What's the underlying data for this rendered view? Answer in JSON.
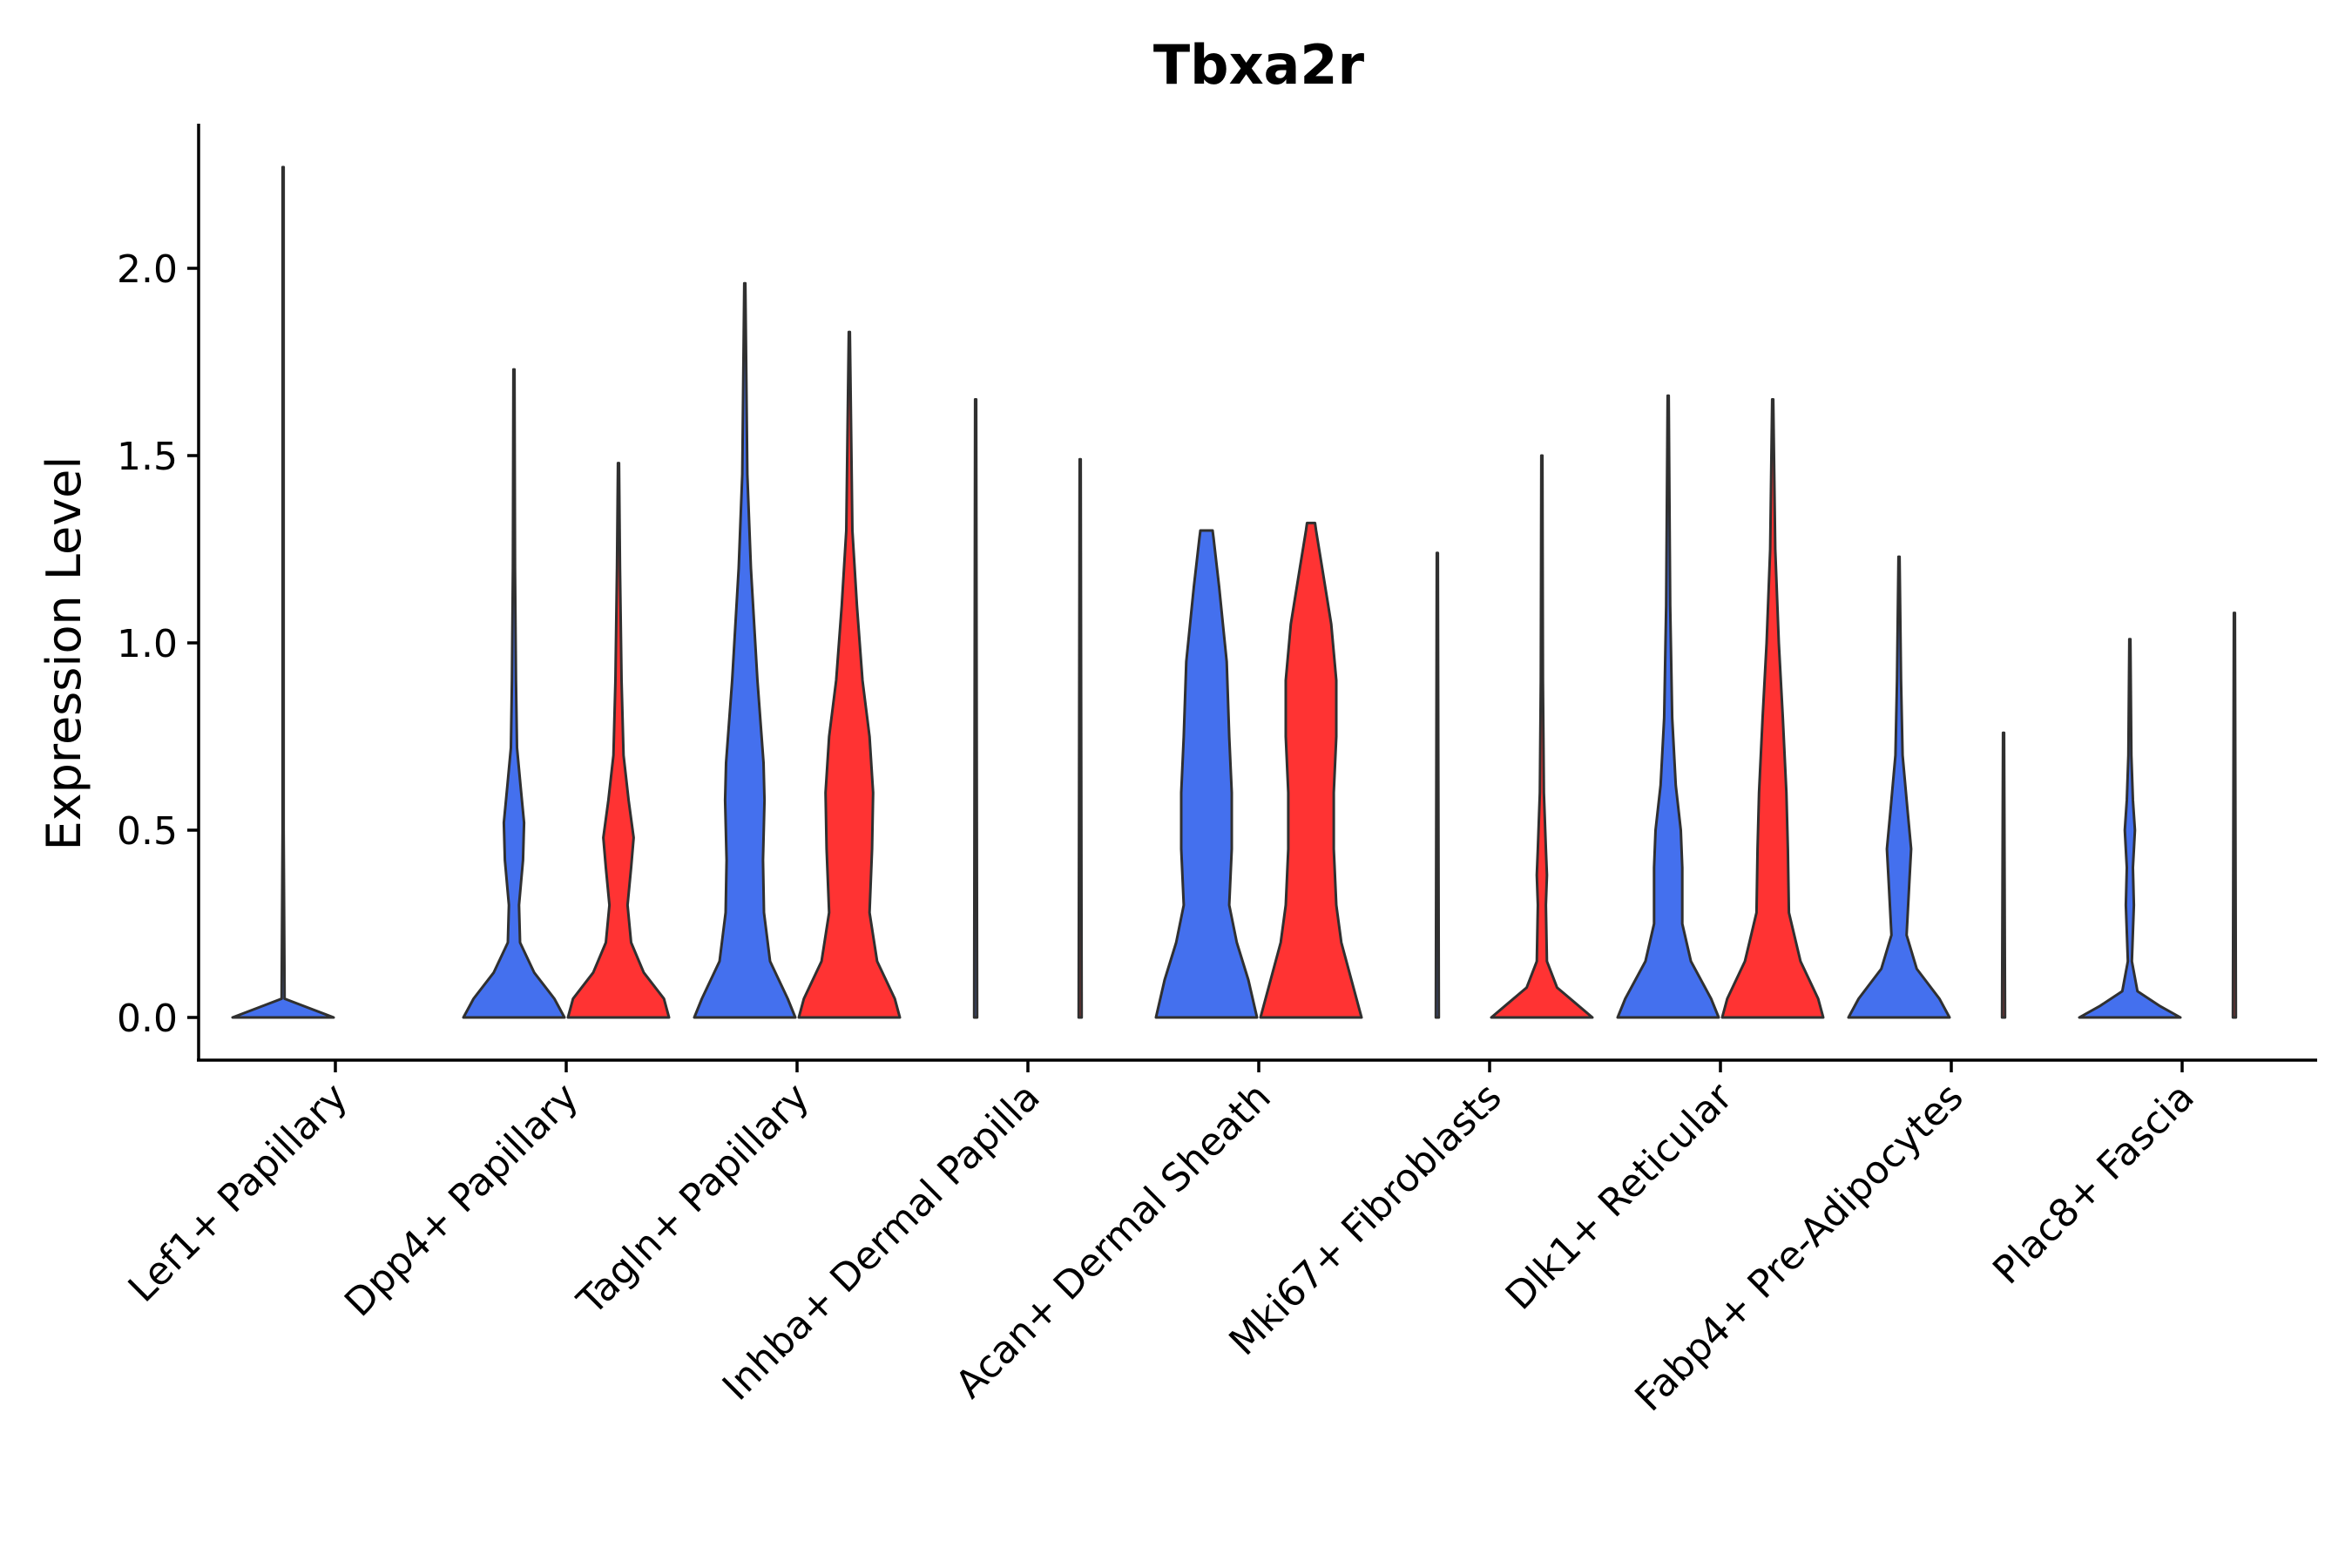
{
  "chart_data": {
    "type": "violin",
    "title": "Tbxa2r",
    "xlabel": "",
    "ylabel": "Expression Level",
    "ylim": [
      -0.113,
      2.4
    ],
    "yticks": [
      0.0,
      0.5,
      1.0,
      1.5,
      2.0
    ],
    "ytick_labels": [
      "0.0",
      "0.5",
      "1.0",
      "1.5",
      "2.0"
    ],
    "categories": [
      "Lef1+ Papillary",
      "Dpp4+ Papillary",
      "Tagln+ Papillary",
      "Inhba+ Dermal Papilla",
      "Acan+ Dermal Sheath",
      "Mki67+ Fibroblasts",
      "Dlk1+ Reticular",
      "Fabp4+ Pre-Adipocytes",
      "Plac8+ Fascia"
    ],
    "series": [
      {
        "name": "group 1",
        "color": "#4470EE",
        "max_values": [
          2.27,
          1.73,
          1.96,
          1.65,
          1.3,
          1.24,
          1.66,
          1.23,
          1.01
        ],
        "profiles": [
          [
            [
              0,
              1.0
            ],
            [
              0.05,
              0.03
            ],
            [
              0.5,
              0.01
            ],
            [
              2.27,
              0.01
            ]
          ],
          [
            [
              0,
              1.0
            ],
            [
              0.05,
              0.8
            ],
            [
              0.12,
              0.4
            ],
            [
              0.2,
              0.12
            ],
            [
              0.3,
              0.1
            ],
            [
              0.42,
              0.18
            ],
            [
              0.52,
              0.2
            ],
            [
              0.62,
              0.13
            ],
            [
              0.72,
              0.06
            ],
            [
              0.9,
              0.04
            ],
            [
              1.2,
              0.02
            ],
            [
              1.73,
              0.01
            ]
          ],
          [
            [
              0,
              1.0
            ],
            [
              0.05,
              0.85
            ],
            [
              0.15,
              0.5
            ],
            [
              0.28,
              0.38
            ],
            [
              0.42,
              0.36
            ],
            [
              0.58,
              0.39
            ],
            [
              0.68,
              0.37
            ],
            [
              0.9,
              0.25
            ],
            [
              1.2,
              0.12
            ],
            [
              1.45,
              0.05
            ],
            [
              1.96,
              0.01
            ]
          ],
          [
            [
              0,
              0.03
            ],
            [
              1.65,
              0.01
            ]
          ],
          [
            [
              0,
              1.0
            ],
            [
              0.1,
              0.83
            ],
            [
              0.2,
              0.6
            ],
            [
              0.3,
              0.45
            ],
            [
              0.45,
              0.5
            ],
            [
              0.6,
              0.5
            ],
            [
              0.75,
              0.45
            ],
            [
              0.95,
              0.4
            ],
            [
              1.15,
              0.25
            ],
            [
              1.28,
              0.14
            ],
            [
              1.3,
              0.12
            ]
          ],
          [
            [
              0,
              0.03
            ],
            [
              1.24,
              0.01
            ]
          ],
          [
            [
              0,
              1.0
            ],
            [
              0.05,
              0.85
            ],
            [
              0.15,
              0.45
            ],
            [
              0.25,
              0.28
            ],
            [
              0.4,
              0.28
            ],
            [
              0.5,
              0.25
            ],
            [
              0.62,
              0.15
            ],
            [
              0.8,
              0.08
            ],
            [
              1.1,
              0.04
            ],
            [
              1.66,
              0.01
            ]
          ],
          [
            [
              0,
              1.0
            ],
            [
              0.05,
              0.8
            ],
            [
              0.13,
              0.35
            ],
            [
              0.22,
              0.15
            ],
            [
              0.35,
              0.2
            ],
            [
              0.45,
              0.24
            ],
            [
              0.55,
              0.17
            ],
            [
              0.7,
              0.07
            ],
            [
              0.9,
              0.04
            ],
            [
              1.23,
              0.01
            ]
          ],
          [
            [
              0,
              1.0
            ],
            [
              0.03,
              0.6
            ],
            [
              0.07,
              0.15
            ],
            [
              0.15,
              0.04
            ],
            [
              0.3,
              0.08
            ],
            [
              0.4,
              0.06
            ],
            [
              0.5,
              0.1
            ],
            [
              0.58,
              0.06
            ],
            [
              0.7,
              0.03
            ],
            [
              1.01,
              0.01
            ]
          ]
        ]
      },
      {
        "name": "group 2",
        "color": "#FF3333",
        "max_values": [
          null,
          1.48,
          1.83,
          1.49,
          1.32,
          1.5,
          1.65,
          0.76,
          1.08
        ],
        "profiles": [
          null,
          [
            [
              0,
              1.0
            ],
            [
              0.05,
              0.9
            ],
            [
              0.12,
              0.5
            ],
            [
              0.2,
              0.25
            ],
            [
              0.3,
              0.18
            ],
            [
              0.4,
              0.25
            ],
            [
              0.48,
              0.3
            ],
            [
              0.58,
              0.2
            ],
            [
              0.7,
              0.1
            ],
            [
              0.9,
              0.06
            ],
            [
              1.2,
              0.03
            ],
            [
              1.48,
              0.01
            ]
          ],
          [
            [
              0,
              1.0
            ],
            [
              0.05,
              0.9
            ],
            [
              0.15,
              0.55
            ],
            [
              0.28,
              0.4
            ],
            [
              0.45,
              0.45
            ],
            [
              0.6,
              0.47
            ],
            [
              0.75,
              0.4
            ],
            [
              0.9,
              0.26
            ],
            [
              1.1,
              0.15
            ],
            [
              1.3,
              0.06
            ],
            [
              1.83,
              0.01
            ]
          ],
          [
            [
              0,
              0.03
            ],
            [
              1.49,
              0.01
            ]
          ],
          [
            [
              0,
              1.0
            ],
            [
              0.1,
              0.8
            ],
            [
              0.2,
              0.6
            ],
            [
              0.3,
              0.5
            ],
            [
              0.45,
              0.45
            ],
            [
              0.6,
              0.45
            ],
            [
              0.75,
              0.5
            ],
            [
              0.9,
              0.5
            ],
            [
              1.05,
              0.4
            ],
            [
              1.2,
              0.22
            ],
            [
              1.3,
              0.1
            ],
            [
              1.32,
              0.08
            ]
          ],
          [
            [
              0,
              1.0
            ],
            [
              0.04,
              0.65
            ],
            [
              0.08,
              0.3
            ],
            [
              0.15,
              0.1
            ],
            [
              0.3,
              0.08
            ],
            [
              0.38,
              0.1
            ],
            [
              0.45,
              0.08
            ],
            [
              0.6,
              0.04
            ],
            [
              0.9,
              0.02
            ],
            [
              1.5,
              0.01
            ]
          ],
          [
            [
              0,
              1.0
            ],
            [
              0.05,
              0.9
            ],
            [
              0.15,
              0.55
            ],
            [
              0.28,
              0.32
            ],
            [
              0.45,
              0.3
            ],
            [
              0.6,
              0.27
            ],
            [
              0.8,
              0.2
            ],
            [
              1.0,
              0.12
            ],
            [
              1.25,
              0.05
            ],
            [
              1.65,
              0.01
            ]
          ],
          [
            [
              0,
              0.03
            ],
            [
              0.76,
              0.01
            ]
          ],
          [
            [
              0,
              0.03
            ],
            [
              1.08,
              0.01
            ]
          ]
        ]
      }
    ]
  }
}
